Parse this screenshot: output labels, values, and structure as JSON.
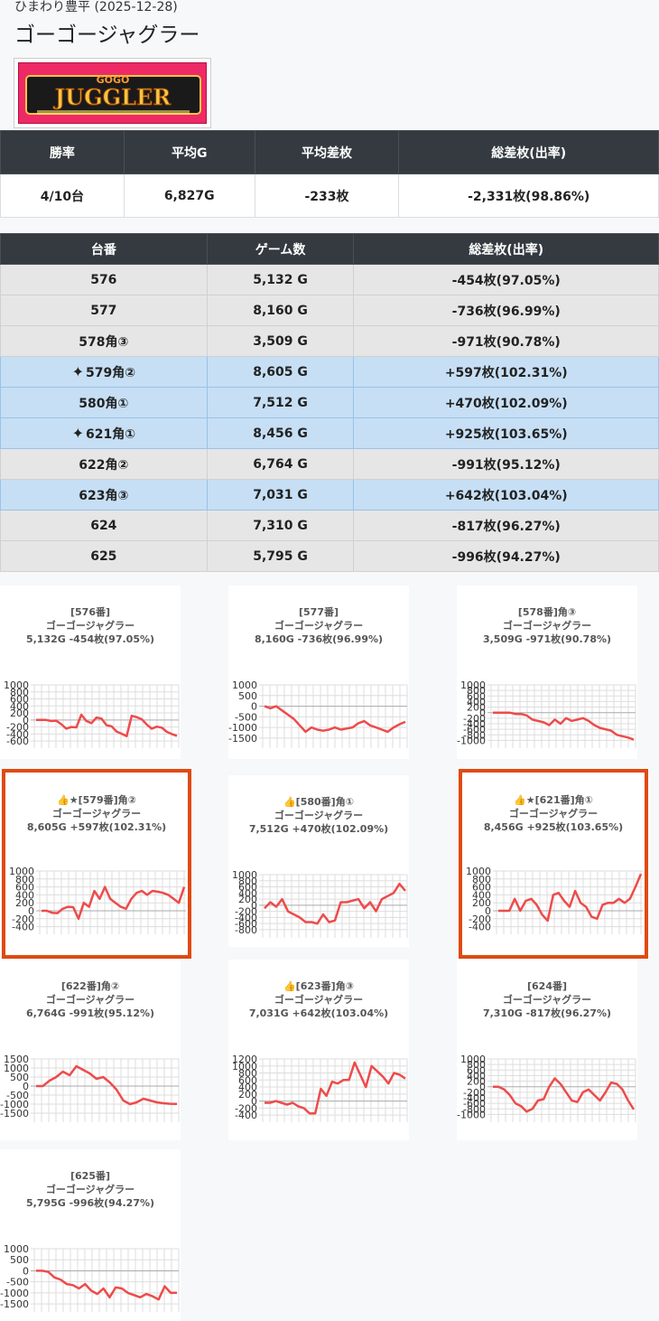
{
  "store_label": "ひまわり豊平 (2025-12-28)",
  "title": "ゴーゴージャグラー",
  "logo": {
    "top_text": "GOGO",
    "main_text": "JUGGLER"
  },
  "summary": {
    "headers": [
      "勝率",
      "平均G",
      "平均差枚",
      "総差枚(出率)"
    ],
    "values": [
      "4/10台",
      "6,827G",
      "-233枚",
      "-2,331枚(98.86%)"
    ]
  },
  "machines": {
    "headers": [
      "台番",
      "ゲーム数",
      "総差枚(出率)"
    ],
    "rows": [
      {
        "id": "576",
        "games": "5,132 G",
        "diff": "-454枚(97.05%)",
        "win": false,
        "spark": false
      },
      {
        "id": "577",
        "games": "8,160 G",
        "diff": "-736枚(96.99%)",
        "win": false,
        "spark": false
      },
      {
        "id": "578角③",
        "games": "3,509 G",
        "diff": "-971枚(90.78%)",
        "win": false,
        "spark": false
      },
      {
        "id": "579角②",
        "games": "8,605 G",
        "diff": "+597枚(102.31%)",
        "win": true,
        "spark": true
      },
      {
        "id": "580角①",
        "games": "7,512 G",
        "diff": "+470枚(102.09%)",
        "win": true,
        "spark": false
      },
      {
        "id": "621角①",
        "games": "8,456 G",
        "diff": "+925枚(103.65%)",
        "win": true,
        "spark": true
      },
      {
        "id": "622角②",
        "games": "6,764 G",
        "diff": "-991枚(95.12%)",
        "win": false,
        "spark": false
      },
      {
        "id": "623角③",
        "games": "7,031 G",
        "diff": "+642枚(103.04%)",
        "win": true,
        "spark": false
      },
      {
        "id": "624",
        "games": "7,310 G",
        "diff": "-817枚(96.27%)",
        "win": false,
        "spark": false
      },
      {
        "id": "625",
        "games": "5,795 G",
        "diff": "-996枚(94.27%)",
        "win": false,
        "spark": false
      }
    ]
  },
  "colors": {
    "line": "#ee4b4b",
    "highlight_border": "#e04a12",
    "win_row": "#c6dff5",
    "header_bg": "#343a40"
  },
  "icons": {
    "sparkle": "sparkles-icon",
    "thumb": "thumbs-up-icon",
    "star": "star-icon"
  },
  "chart_data": [
    {
      "type": "line",
      "lines": [
        "[576番]",
        "ゴーゴージャグラー",
        "5,132G -454枚(97.05%)"
      ],
      "yticks": [
        1000,
        800,
        600,
        400,
        200,
        0,
        -200,
        -400,
        -600
      ],
      "ylim": [
        -700,
        1000
      ],
      "values": [
        0,
        0,
        0,
        -30,
        -20,
        -120,
        -250,
        -200,
        -210,
        150,
        -30,
        -90,
        70,
        40,
        -150,
        -180,
        -330,
        -390,
        -460,
        120,
        80,
        20,
        -130,
        -250,
        -190,
        -220,
        -340,
        -400,
        -454
      ],
      "highlight": false
    },
    {
      "type": "line",
      "lines": [
        "[577番]",
        "ゴーゴージャグラー",
        "8,160G -736枚(96.99%)"
      ],
      "yticks": [
        1000,
        500,
        0,
        -500,
        -1000,
        -1500
      ],
      "ylim": [
        -1800,
        1000
      ],
      "values": [
        0,
        -100,
        0,
        -200,
        -400,
        -600,
        -900,
        -1200,
        -1000,
        -1100,
        -1150,
        -1100,
        -1000,
        -1100,
        -1050,
        -1000,
        -800,
        -700,
        -900,
        -1000,
        -1100,
        -1200,
        -1000,
        -850,
        -736
      ],
      "highlight": false
    },
    {
      "type": "line",
      "lines": [
        "[578番]角③",
        "ゴーゴージャグラー",
        "3,509G -971枚(90.78%)"
      ],
      "yticks": [
        1000,
        800,
        600,
        400,
        200,
        0,
        -200,
        -400,
        -600,
        -800,
        -1000
      ],
      "ylim": [
        -1150,
        1000
      ],
      "values": [
        0,
        0,
        0,
        0,
        -50,
        -50,
        -100,
        -250,
        -300,
        -350,
        -450,
        -250,
        -400,
        -200,
        -300,
        -250,
        -200,
        -300,
        -450,
        -550,
        -600,
        -650,
        -800,
        -850,
        -900,
        -971
      ],
      "highlight": false
    },
    {
      "type": "line",
      "lines": [
        "👍★[579番]角②",
        "ゴーゴージャグラー",
        "8,605G +597枚(102.31%)"
      ],
      "yticks": [
        1000,
        800,
        600,
        400,
        200,
        0,
        -200,
        -400
      ],
      "ylim": [
        -500,
        1000
      ],
      "values": [
        0,
        0,
        -50,
        -60,
        50,
        100,
        90,
        -200,
        200,
        100,
        500,
        300,
        600,
        300,
        200,
        100,
        50,
        300,
        450,
        500,
        400,
        500,
        480,
        450,
        400,
        300,
        200,
        597
      ],
      "highlight": true
    },
    {
      "type": "line",
      "lines": [
        "👍[580番]角①",
        "ゴーゴージャグラー",
        "7,512G +470枚(102.09%)"
      ],
      "yticks": [
        1000,
        800,
        600,
        400,
        200,
        0,
        -200,
        -400,
        -600,
        -800
      ],
      "ylim": [
        -950,
        1000
      ],
      "values": [
        -100,
        100,
        -50,
        200,
        -200,
        -300,
        -400,
        -550,
        -550,
        -600,
        -300,
        -550,
        -500,
        100,
        100,
        150,
        200,
        -100,
        100,
        -200,
        200,
        300,
        400,
        700,
        470
      ],
      "highlight": false
    },
    {
      "type": "line",
      "lines": [
        "👍★[621番]角①",
        "ゴーゴージャグラー",
        "8,456G +925枚(103.65%)"
      ],
      "yticks": [
        1000,
        800,
        600,
        400,
        200,
        0,
        -200,
        -400
      ],
      "ylim": [
        -500,
        1000
      ],
      "values": [
        0,
        0,
        0,
        300,
        0,
        250,
        300,
        150,
        -100,
        -250,
        400,
        450,
        250,
        100,
        500,
        200,
        100,
        -150,
        -200,
        150,
        200,
        200,
        300,
        200,
        300,
        600,
        925
      ],
      "highlight": true
    },
    {
      "type": "line",
      "lines": [
        "[622番]角②",
        "ゴーゴージャグラー",
        "6,764G -991枚(95.12%)"
      ],
      "yticks": [
        1500,
        1000,
        500,
        0,
        -500,
        -1000,
        -1500
      ],
      "ylim": [
        -1800,
        1500
      ],
      "values": [
        0,
        0,
        300,
        500,
        800,
        600,
        1100,
        900,
        700,
        400,
        500,
        200,
        -200,
        -800,
        -1000,
        -900,
        -700,
        -800,
        -900,
        -950,
        -980,
        -991
      ],
      "highlight": false
    },
    {
      "type": "line",
      "lines": [
        "👍[623番]角③",
        "ゴーゴージャグラー",
        "7,031G +642枚(103.04%)"
      ],
      "yticks": [
        1200,
        1000,
        800,
        600,
        400,
        200,
        0,
        -200,
        -400
      ],
      "ylim": [
        -500,
        1200
      ],
      "values": [
        -50,
        -50,
        0,
        -50,
        -100,
        -50,
        -150,
        -200,
        -350,
        -350,
        350,
        150,
        550,
        500,
        600,
        600,
        1100,
        750,
        400,
        1000,
        850,
        700,
        500,
        800,
        750,
        642
      ],
      "highlight": false
    },
    {
      "type": "line",
      "lines": [
        "[624番]",
        "ゴーゴージャグラー",
        "7,310G -817枚(96.27%)"
      ],
      "yticks": [
        1000,
        800,
        600,
        400,
        200,
        0,
        -200,
        -400,
        -600,
        -800,
        -1000
      ],
      "ylim": [
        -1150,
        1000
      ],
      "values": [
        0,
        0,
        -100,
        -300,
        -600,
        -700,
        -900,
        -800,
        -500,
        -450,
        0,
        300,
        100,
        -200,
        -500,
        -550,
        -200,
        -100,
        -300,
        -500,
        -200,
        150,
        100,
        -100,
        -500,
        -817
      ],
      "highlight": false
    },
    {
      "type": "line",
      "lines": [
        "[625番]",
        "ゴーゴージャグラー",
        "5,795G -996枚(94.27%)"
      ],
      "yticks": [
        1000,
        500,
        0,
        -500,
        -1000,
        -1500
      ],
      "ylim": [
        -1700,
        1000
      ],
      "values": [
        0,
        0,
        -50,
        -300,
        -400,
        -600,
        -650,
        -800,
        -600,
        -900,
        -1050,
        -800,
        -1200,
        -750,
        -800,
        -1000,
        -1100,
        -1200,
        -1050,
        -1150,
        -1300,
        -700,
        -1000,
        -996
      ],
      "highlight": false
    }
  ]
}
